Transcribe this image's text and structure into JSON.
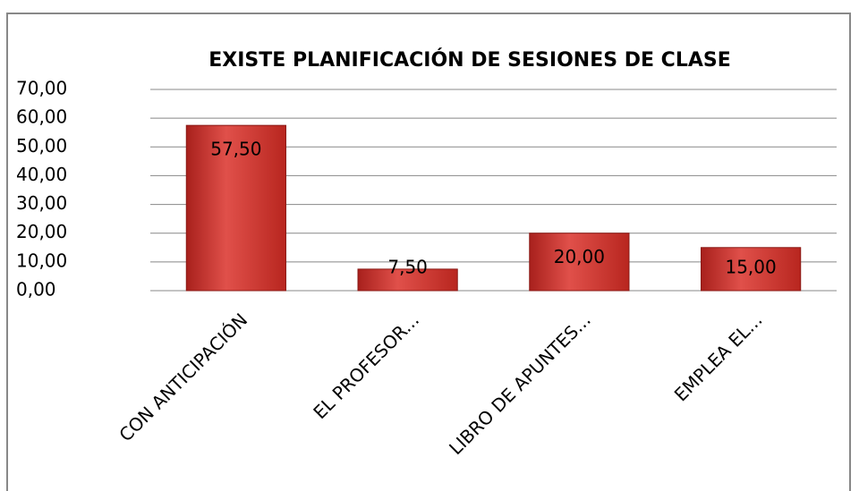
{
  "chart_data": {
    "type": "bar",
    "title": "EXISTE PLANIFICACIÓN DE SESIONES DE CLASE",
    "categories": [
      "CON ANTICIPACIÓN",
      "EL PROFESOR...",
      "LIBRO DE APUNTES...",
      "EMPLEA EL..."
    ],
    "values": [
      57.5,
      7.5,
      20,
      15
    ],
    "value_labels": [
      "57,50",
      "7,50",
      "20,00",
      "15,00"
    ],
    "color": "#c0312b",
    "ylim": [
      0,
      70
    ],
    "yticks": [
      {
        "value": 0,
        "label": "0,00"
      },
      {
        "value": 10,
        "label": "10,00"
      },
      {
        "value": 20,
        "label": "20,00"
      },
      {
        "value": 30,
        "label": "30,00"
      },
      {
        "value": 40,
        "label": "40,00"
      },
      {
        "value": 50,
        "label": "50,00"
      },
      {
        "value": 60,
        "label": "60,00"
      },
      {
        "value": 70,
        "label": "70,00"
      }
    ],
    "grid": true
  }
}
